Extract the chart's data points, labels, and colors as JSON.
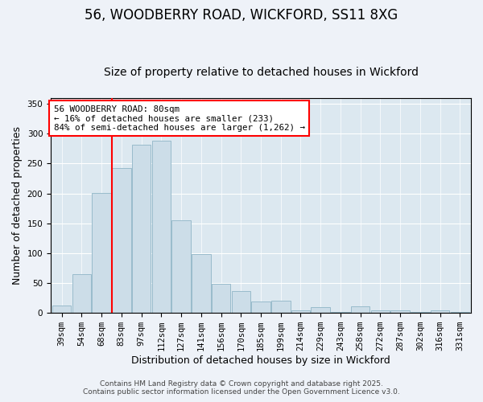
{
  "title": "56, WOODBERRY ROAD, WICKFORD, SS11 8XG",
  "subtitle": "Size of property relative to detached houses in Wickford",
  "xlabel": "Distribution of detached houses by size in Wickford",
  "ylabel": "Number of detached properties",
  "categories": [
    "39sqm",
    "54sqm",
    "68sqm",
    "83sqm",
    "97sqm",
    "112sqm",
    "127sqm",
    "141sqm",
    "156sqm",
    "170sqm",
    "185sqm",
    "199sqm",
    "214sqm",
    "229sqm",
    "243sqm",
    "258sqm",
    "272sqm",
    "287sqm",
    "302sqm",
    "316sqm",
    "331sqm"
  ],
  "values": [
    13,
    65,
    201,
    242,
    282,
    289,
    155,
    98,
    49,
    36,
    19,
    20,
    4,
    10,
    2,
    11,
    4,
    5,
    1,
    4,
    1
  ],
  "bar_color": "#ccdde8",
  "bar_edge_color": "#99bbcc",
  "vline_color": "red",
  "vline_x": 3.0,
  "annotation_title": "56 WOODBERRY ROAD: 80sqm",
  "annotation_line1": "← 16% of detached houses are smaller (233)",
  "annotation_line2": "84% of semi-detached houses are larger (1,262) →",
  "annotation_box_color": "white",
  "annotation_box_edge": "red",
  "ylim": [
    0,
    360
  ],
  "yticks": [
    0,
    50,
    100,
    150,
    200,
    250,
    300,
    350
  ],
  "background_color": "#eef2f8",
  "plot_bg_color": "#dce8f0",
  "footer1": "Contains HM Land Registry data © Crown copyright and database right 2025.",
  "footer2": "Contains public sector information licensed under the Open Government Licence v3.0.",
  "title_fontsize": 12,
  "subtitle_fontsize": 10,
  "axis_label_fontsize": 9,
  "tick_fontsize": 7.5,
  "footer_fontsize": 6.5
}
